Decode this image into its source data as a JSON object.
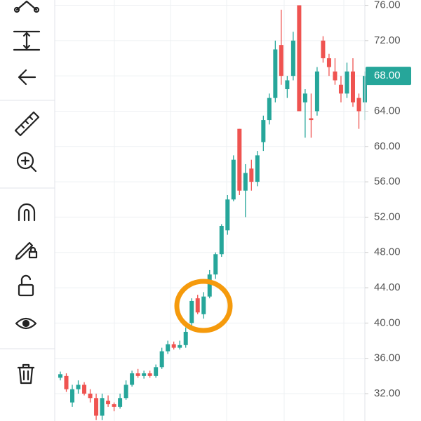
{
  "chart_data": {
    "type": "candlestick",
    "open": [
      33.8,
      34,
      31,
      32.5,
      33,
      32,
      31.5,
      29.5,
      31.2,
      30.8,
      30.5,
      31.5,
      33,
      34.3,
      34,
      34.3,
      34,
      35,
      36.8,
      37.6,
      37.2,
      37.5,
      40,
      42.8,
      41,
      43,
      45.5,
      47.8,
      50.5,
      54,
      62,
      55,
      57.5,
      56,
      60.5,
      63,
      65.5,
      71.5,
      66.5,
      68,
      76,
      65,
      63.2,
      64,
      72,
      70,
      68.5,
      67,
      66,
      68.5,
      65.5,
      65
    ],
    "high": [
      34.5,
      34.3,
      33,
      33.5,
      33.3,
      32.5,
      32,
      32,
      31.8,
      31,
      32,
      33.5,
      34.6,
      34.8,
      34.6,
      34.6,
      35.3,
      37.2,
      38,
      37.9,
      38,
      39.5,
      42.8,
      43.2,
      43.5,
      46,
      48,
      51.2,
      54.5,
      59,
      62,
      58,
      58.5,
      59.5,
      63.5,
      66,
      72,
      75.5,
      68,
      73,
      76,
      66.5,
      66,
      69,
      72.5,
      70.5,
      70,
      68,
      69.5,
      70,
      66,
      68.5
    ],
    "low": [
      33.5,
      32.2,
      30.5,
      32,
      31.8,
      31,
      29,
      29,
      30.5,
      30,
      30.3,
      31.3,
      32.8,
      33.8,
      33.7,
      33.8,
      33.8,
      34.8,
      36.5,
      37,
      37,
      37.2,
      39.5,
      41,
      40.5,
      42.8,
      45,
      47.5,
      50,
      53.8,
      54.5,
      52,
      55,
      55.5,
      59.5,
      62.5,
      65,
      67,
      65.5,
      67.5,
      64,
      61,
      61,
      63.5,
      69.5,
      68,
      67,
      65,
      65.5,
      64.5,
      62,
      63
    ],
    "close": [
      34.2,
      32.5,
      32.5,
      33,
      32,
      31.5,
      29.5,
      31.5,
      30.8,
      30.5,
      31.5,
      33,
      34.3,
      34,
      34.3,
      34,
      35,
      36.8,
      37.6,
      37.2,
      37.5,
      39,
      42.5,
      41.2,
      43,
      45.5,
      47.8,
      51,
      54,
      58.5,
      55,
      57,
      56,
      59,
      63,
      65.5,
      71,
      68,
      67.5,
      72,
      64,
      66,
      63,
      68.5,
      70,
      69,
      67.5,
      66,
      68.5,
      65,
      64,
      68
    ],
    "up_color": "#26a69a",
    "down_color": "#ef5350",
    "ylim": [
      28.9,
      76.6
    ],
    "yticks": [
      {
        "value": 32,
        "label": "32.00"
      },
      {
        "value": 36,
        "label": "36.00"
      },
      {
        "value": 40,
        "label": "40.00"
      },
      {
        "value": 44,
        "label": "44.00"
      },
      {
        "value": 48,
        "label": "48.00"
      },
      {
        "value": 52,
        "label": "52.00"
      },
      {
        "value": 56,
        "label": "56.00"
      },
      {
        "value": 60,
        "label": "60.00"
      },
      {
        "value": 64,
        "label": "64.00"
      },
      {
        "value": 68,
        "label": "68.00"
      },
      {
        "value": 72,
        "label": "72.00"
      },
      {
        "value": 76,
        "label": "76.00"
      }
    ],
    "last_price": {
      "value": 68,
      "label": "68.00"
    },
    "grid": true
  }
}
